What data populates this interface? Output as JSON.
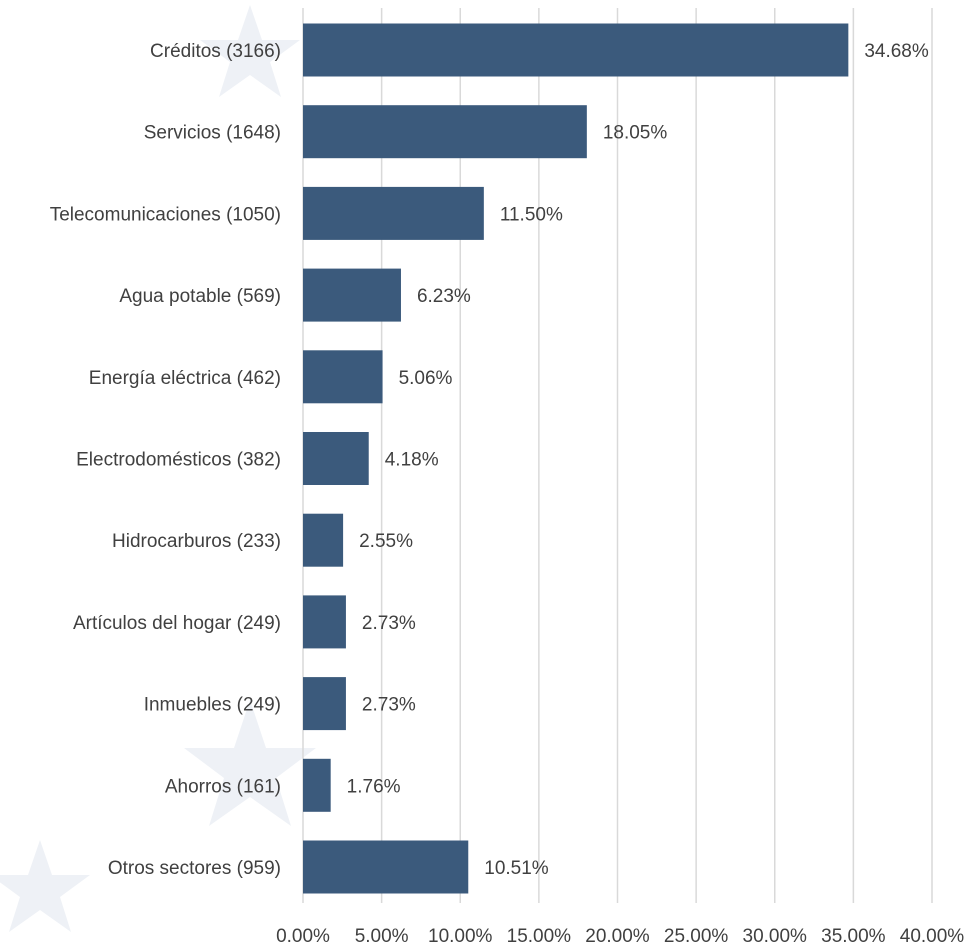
{
  "chart_data": {
    "type": "bar",
    "orientation": "horizontal",
    "categories": [
      "Créditos (3166)",
      "Servicios (1648)",
      "Telecomunicaciones (1050)",
      "Agua potable (569)",
      "Energía eléctrica (462)",
      "Electrodomésticos (382)",
      "Hidrocarburos (233)",
      "Artículos del hogar (249)",
      "Inmuebles (249)",
      "Ahorros (161)",
      "Otros sectores (959)"
    ],
    "values": [
      34.68,
      18.05,
      11.5,
      6.23,
      5.06,
      4.18,
      2.55,
      2.73,
      2.73,
      1.76,
      10.51
    ],
    "value_labels": [
      "34.68%",
      "18.05%",
      "11.50%",
      "6.23%",
      "5.06%",
      "4.18%",
      "2.55%",
      "2.73%",
      "2.73%",
      "1.76%",
      "10.51%"
    ],
    "xticks": [
      0,
      5,
      10,
      15,
      20,
      25,
      30,
      35,
      40
    ],
    "xtick_labels": [
      "0.00%",
      "5.00%",
      "10.00%",
      "15.00%",
      "20.00%",
      "25.00%",
      "30.00%",
      "35.00%",
      "40.00%"
    ],
    "xlim": [
      0,
      40
    ],
    "title": "",
    "xlabel": "",
    "ylabel": "",
    "grid": "vertical",
    "legend": "none",
    "bar_color": "#3b5a7c"
  }
}
